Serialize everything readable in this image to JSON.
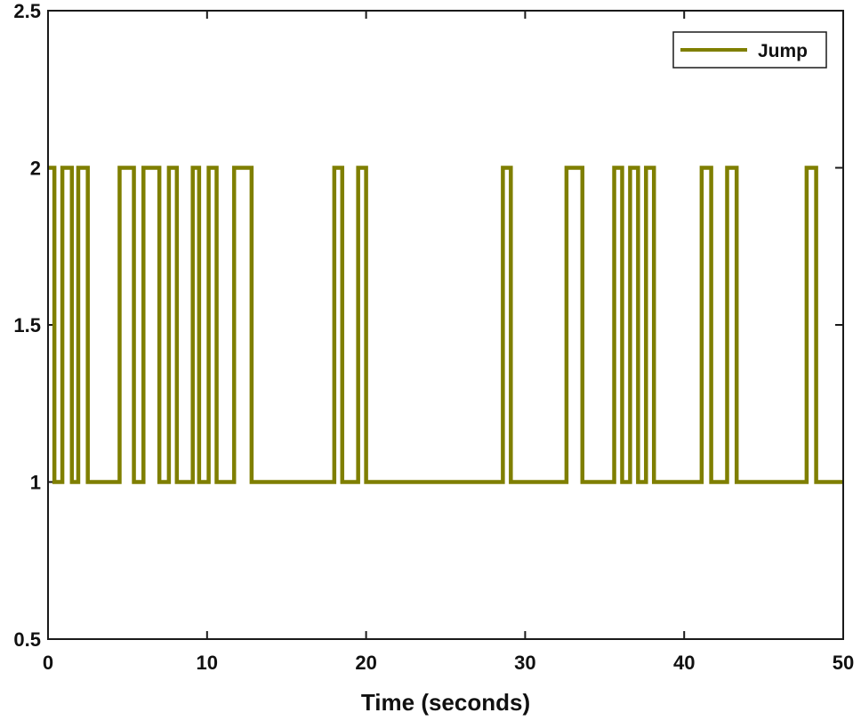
{
  "chart_data": {
    "type": "line",
    "step": true,
    "title": "",
    "xlabel": "Time (seconds)",
    "ylabel": "",
    "xlim": [
      0,
      50
    ],
    "ylim": [
      0.5,
      2.5
    ],
    "xticks": [
      0,
      10,
      20,
      30,
      40,
      50
    ],
    "xtick_labels": [
      "0",
      "10",
      "20",
      "30",
      "40",
      "50"
    ],
    "yticks": [
      0.5,
      1,
      1.5,
      2,
      2.5
    ],
    "ytick_labels": [
      "0.5",
      "1",
      "1.5",
      "2",
      "2.5"
    ],
    "grid": false,
    "legend_position": "top-right",
    "series": [
      {
        "name": "Jump",
        "color": "#7f7f00",
        "initial_value": 2,
        "final_x": 50,
        "transitions": [
          [
            0.4,
            1
          ],
          [
            0.9,
            2
          ],
          [
            1.5,
            1
          ],
          [
            1.9,
            2
          ],
          [
            2.5,
            1
          ],
          [
            4.5,
            2
          ],
          [
            5.4,
            1
          ],
          [
            6.0,
            2
          ],
          [
            7.0,
            1
          ],
          [
            7.6,
            2
          ],
          [
            8.1,
            1
          ],
          [
            9.1,
            2
          ],
          [
            9.5,
            1
          ],
          [
            10.1,
            2
          ],
          [
            10.6,
            1
          ],
          [
            11.7,
            2
          ],
          [
            12.8,
            1
          ],
          [
            18.0,
            2
          ],
          [
            18.5,
            1
          ],
          [
            19.5,
            2
          ],
          [
            20.0,
            1
          ],
          [
            28.6,
            2
          ],
          [
            29.1,
            1
          ],
          [
            32.6,
            2
          ],
          [
            33.6,
            1
          ],
          [
            35.6,
            2
          ],
          [
            36.1,
            1
          ],
          [
            36.6,
            2
          ],
          [
            37.1,
            1
          ],
          [
            37.6,
            2
          ],
          [
            38.1,
            1
          ],
          [
            41.1,
            2
          ],
          [
            41.7,
            1
          ],
          [
            42.7,
            2
          ],
          [
            43.3,
            1
          ],
          [
            47.7,
            2
          ],
          [
            48.3,
            1
          ]
        ]
      }
    ]
  }
}
